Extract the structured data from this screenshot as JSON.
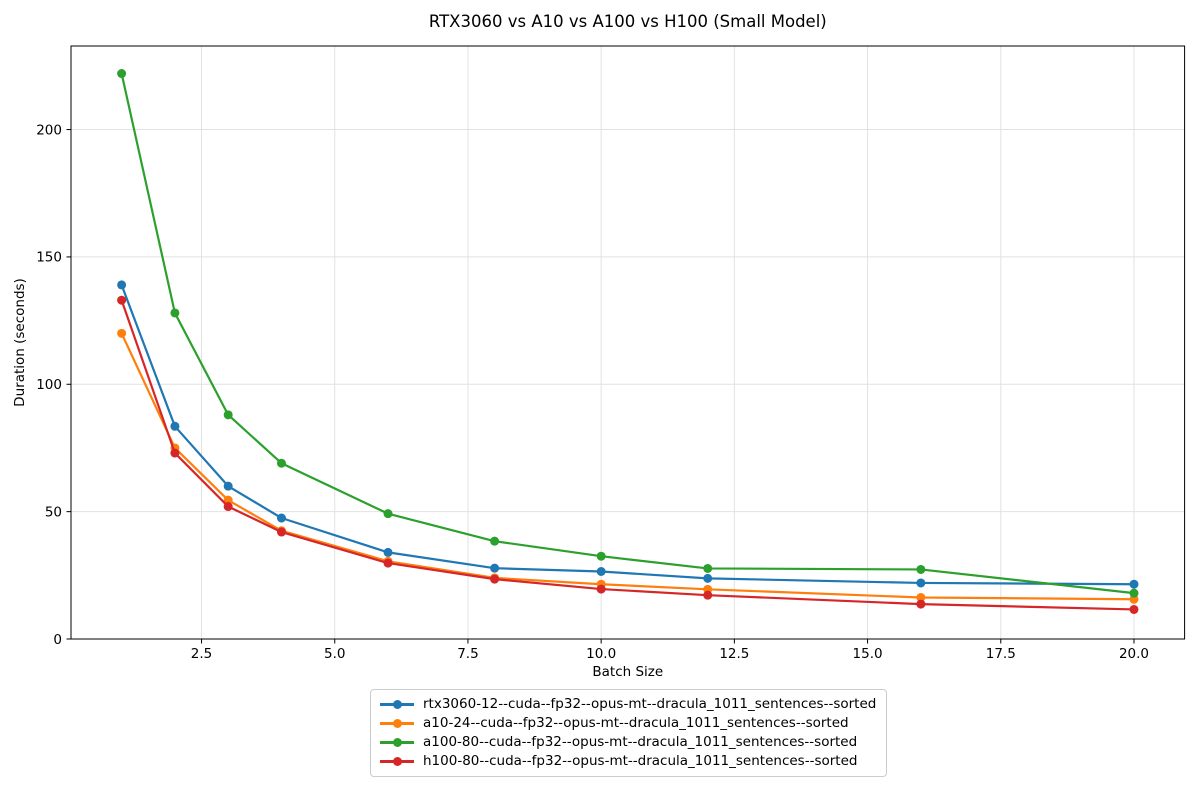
{
  "chart_data": {
    "type": "line",
    "title": "RTX3060 vs A10 vs A100 vs H100 (Small Model)",
    "xlabel": "Batch Size",
    "ylabel": "Duration (seconds)",
    "x": [
      1,
      2,
      3,
      4,
      6,
      8,
      10,
      12,
      16,
      20
    ],
    "series": [
      {
        "name": "rtx3060-12--cuda--fp32--opus-mt--dracula_1011_sentences--sorted",
        "color": "#1f77b4",
        "values": [
          139,
          83.5,
          60,
          47.5,
          34,
          27.8,
          26.5,
          23.8,
          22,
          21.5
        ]
      },
      {
        "name": "a10-24--cuda--fp32--opus-mt--dracula_1011_sentences--sorted",
        "color": "#ff7f0e",
        "values": [
          120,
          75,
          54.5,
          42.5,
          30.5,
          24,
          21.5,
          19.5,
          16.3,
          15.6
        ]
      },
      {
        "name": "a100-80--cuda--fp32--opus-mt--dracula_1011_sentences--sorted",
        "color": "#2ca02c",
        "values": [
          222,
          128,
          88,
          69,
          49.2,
          38.4,
          32.5,
          27.7,
          27.3,
          18
        ]
      },
      {
        "name": "h100-80--cuda--fp32--opus-mt--dracula_1011_sentences--sorted",
        "color": "#d62728",
        "values": [
          133,
          73,
          52,
          42,
          29.8,
          23.5,
          19.6,
          17.2,
          13.7,
          11.6
        ]
      }
    ],
    "x_ticks": [
      2.5,
      5.0,
      7.5,
      10.0,
      12.5,
      15.0,
      17.5,
      20.0
    ],
    "x_tick_labels": [
      "2.5",
      "5.0",
      "7.5",
      "10.0",
      "12.5",
      "15.0",
      "17.5",
      "20.0"
    ],
    "y_ticks": [
      0,
      50,
      100,
      150,
      200
    ],
    "xlim": [
      0.05,
      20.95
    ],
    "ylim": [
      0,
      232.8
    ],
    "grid": true,
    "grid_color": "#e2e2e2",
    "spine_color": "#000000",
    "legend_position": "bottom-center-outside"
  }
}
